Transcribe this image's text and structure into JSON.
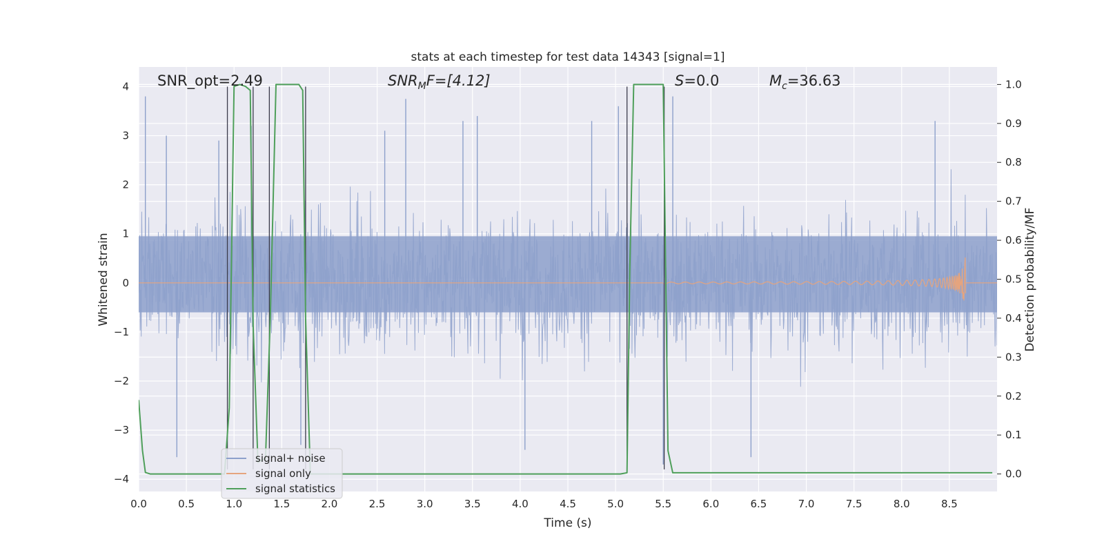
{
  "chart_data": {
    "type": "line",
    "title": "stats at each timestep for test data 14343 [signal=1]",
    "xlabel": "Time (s)",
    "ylabel": "Whitened strain",
    "ylabel_right": "Detection probability/MF",
    "xlim": [
      0.0,
      9.0
    ],
    "ylim": [
      -4.25,
      4.4
    ],
    "ylim_right": [
      -0.045,
      1.045
    ],
    "x_ticks": [
      "0.0",
      "0.5",
      "1.0",
      "1.5",
      "2.0",
      "2.5",
      "3.0",
      "3.5",
      "4.0",
      "4.5",
      "5.0",
      "5.5",
      "6.0",
      "6.5",
      "7.0",
      "7.5",
      "8.0",
      "8.5"
    ],
    "y_ticks": [
      "4",
      "3",
      "2",
      "1",
      "0",
      "−1",
      "−2",
      "−3",
      "−4"
    ],
    "y_right_ticks": [
      "1.0",
      "0.9",
      "0.8",
      "0.7",
      "0.6",
      "0.5",
      "0.4",
      "0.3",
      "0.2",
      "0.1",
      "0.0"
    ],
    "grid": true,
    "legend_placement": "lower-left",
    "annotations": {
      "snr_opt": "SNR_opt=2.49",
      "snr_mf_main": "SNR",
      "snr_mf_sub": "M",
      "snr_mf_rest": "F=[4.12]",
      "s_main": "S",
      "s_rest": "=0.0",
      "mc_main": "M",
      "mc_sub": "c",
      "mc_rest": "=36.63"
    },
    "series": [
      {
        "name": "signal+ noise",
        "color": "#8da0cb",
        "description_only": false,
        "envelope_peaks": [
          {
            "x": 0.07,
            "y": 3.8
          },
          {
            "x": 0.29,
            "y": 3.0
          },
          {
            "x": 0.84,
            "y": 2.9
          },
          {
            "x": 1.18,
            "y": 3.2
          },
          {
            "x": 2.58,
            "y": 3.1
          },
          {
            "x": 2.8,
            "y": 3.75
          },
          {
            "x": 3.4,
            "y": 3.3
          },
          {
            "x": 3.55,
            "y": 3.4
          },
          {
            "x": 4.75,
            "y": 3.3
          },
          {
            "x": 5.03,
            "y": 3.6
          },
          {
            "x": 5.6,
            "y": 3.8
          },
          {
            "x": 8.35,
            "y": 3.3
          },
          {
            "x": 0.4,
            "y": -3.55
          },
          {
            "x": 4.05,
            "y": -3.4
          },
          {
            "x": 6.42,
            "y": -3.55
          },
          {
            "x": 5.5,
            "y": -3.7
          },
          {
            "x": 1.7,
            "y": -3.3
          }
        ]
      },
      {
        "name": "signal only",
        "color": "#e5a47e",
        "chirp_end_time": 8.67,
        "chirp_peak_amplitude": 0.6
      },
      {
        "name": "signal statistics",
        "color": "#4e9f5a",
        "axis": "right",
        "points": [
          [
            0.0,
            0.19
          ],
          [
            0.04,
            0.06
          ],
          [
            0.07,
            0.004
          ],
          [
            0.12,
            0.0
          ],
          [
            0.9,
            0.0
          ],
          [
            0.95,
            0.17
          ],
          [
            1.0,
            0.995
          ],
          [
            1.06,
            1.0
          ],
          [
            1.12,
            0.995
          ],
          [
            1.17,
            0.985
          ],
          [
            1.2,
            0.38
          ],
          [
            1.25,
            0.03
          ],
          [
            1.33,
            0.04
          ],
          [
            1.38,
            0.4
          ],
          [
            1.44,
            1.0
          ],
          [
            1.68,
            1.0
          ],
          [
            1.72,
            0.985
          ],
          [
            1.75,
            0.4
          ],
          [
            1.8,
            0.0
          ],
          [
            5.05,
            0.0
          ],
          [
            5.12,
            0.003
          ],
          [
            5.15,
            0.53
          ],
          [
            5.19,
            1.0
          ],
          [
            5.5,
            1.0
          ],
          [
            5.55,
            0.06
          ],
          [
            5.6,
            0.003
          ],
          [
            8.95,
            0.003
          ]
        ]
      }
    ],
    "vertical_markers_x": [
      0.93,
      1.2,
      1.37,
      1.75,
      5.12,
      5.51
    ]
  }
}
